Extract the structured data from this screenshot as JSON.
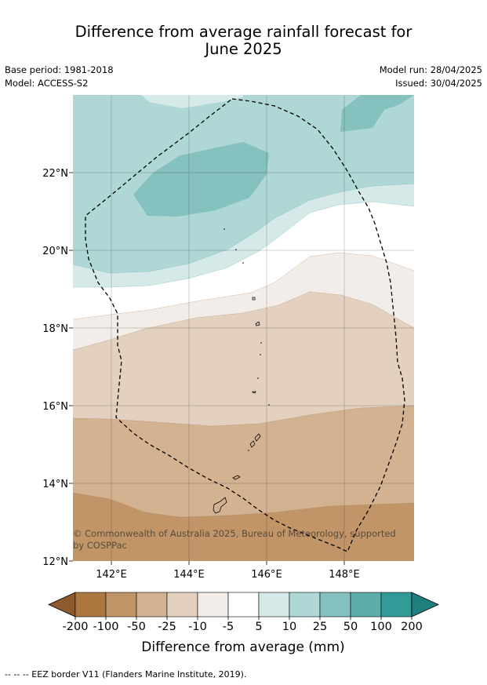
{
  "title": {
    "line1": "Difference from average rainfall forecast for",
    "line2": "June 2025"
  },
  "meta": {
    "base_period": "Base period: 1981-2018",
    "model": "Model: ACCESS-S2",
    "model_run": "Model run: 28/04/2025",
    "issued": "Issued: 30/04/2025"
  },
  "map": {
    "lon_ticks": [
      "142°E",
      "144°E",
      "146°E",
      "148°E"
    ],
    "lat_ticks": [
      "22°N",
      "20°N",
      "18°N",
      "16°N",
      "14°N",
      "12°N"
    ],
    "copyright_line1": "© Commonwealth of Australia 2025, Bureau of Meteorology, supported",
    "copyright_line2": "by COSPPac"
  },
  "colorbar": {
    "label": "Difference from average (mm)",
    "tick_labels": [
      "-200",
      "-100",
      "-50",
      "-25",
      "-10",
      "-5",
      "5",
      "10",
      "25",
      "50",
      "100",
      "200"
    ],
    "colors": {
      "under": "#8c5a2c",
      "bins": [
        "#ad7840",
        "#c19568",
        "#d3b291",
        "#e3d0bf",
        "#f2ede8",
        "#ffffff",
        "#d4e9e8",
        "#aed7d6",
        "#85c1bf",
        "#5cadab",
        "#329b98"
      ],
      "over": "#1e7f7c"
    }
  },
  "footnote": "--  --  -- EEZ border V11 (Flanders Marine Institute, 2019)."
}
